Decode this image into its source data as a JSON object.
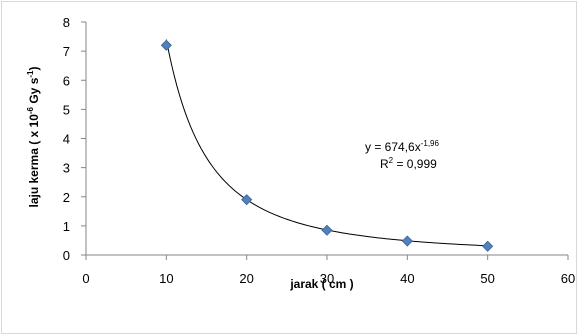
{
  "chart_data": {
    "type": "scatter",
    "title": "",
    "xlabel": "jarak ( cm )",
    "ylabel": {
      "prefix": "laju kerma ( x 10",
      "exp1": "-6",
      "mid": " Gy s",
      "exp2": "-1",
      "suffix": ")"
    },
    "xlim": [
      0,
      60
    ],
    "ylim": [
      0,
      8
    ],
    "xticks": [
      0,
      10,
      20,
      30,
      40,
      50,
      60
    ],
    "yticks": [
      0,
      1,
      2,
      3,
      4,
      5,
      6,
      7,
      8
    ],
    "grid": false,
    "series": [
      {
        "x": [
          10,
          20,
          30,
          40,
          50
        ],
        "y": [
          7.2,
          1.9,
          0.85,
          0.48,
          0.3
        ],
        "marker": "diamond",
        "color": "#4f81bd"
      }
    ],
    "trendline": {
      "type": "power",
      "a": 674.6,
      "b": -1.96,
      "x_range": [
        10,
        50
      ],
      "color": "#000000"
    },
    "annotation": {
      "eq_base": "y = 674,6x",
      "eq_exp": "-1,96",
      "r2_base": "R",
      "r2_exp": "2",
      "r2_value": " = 0,999"
    }
  }
}
